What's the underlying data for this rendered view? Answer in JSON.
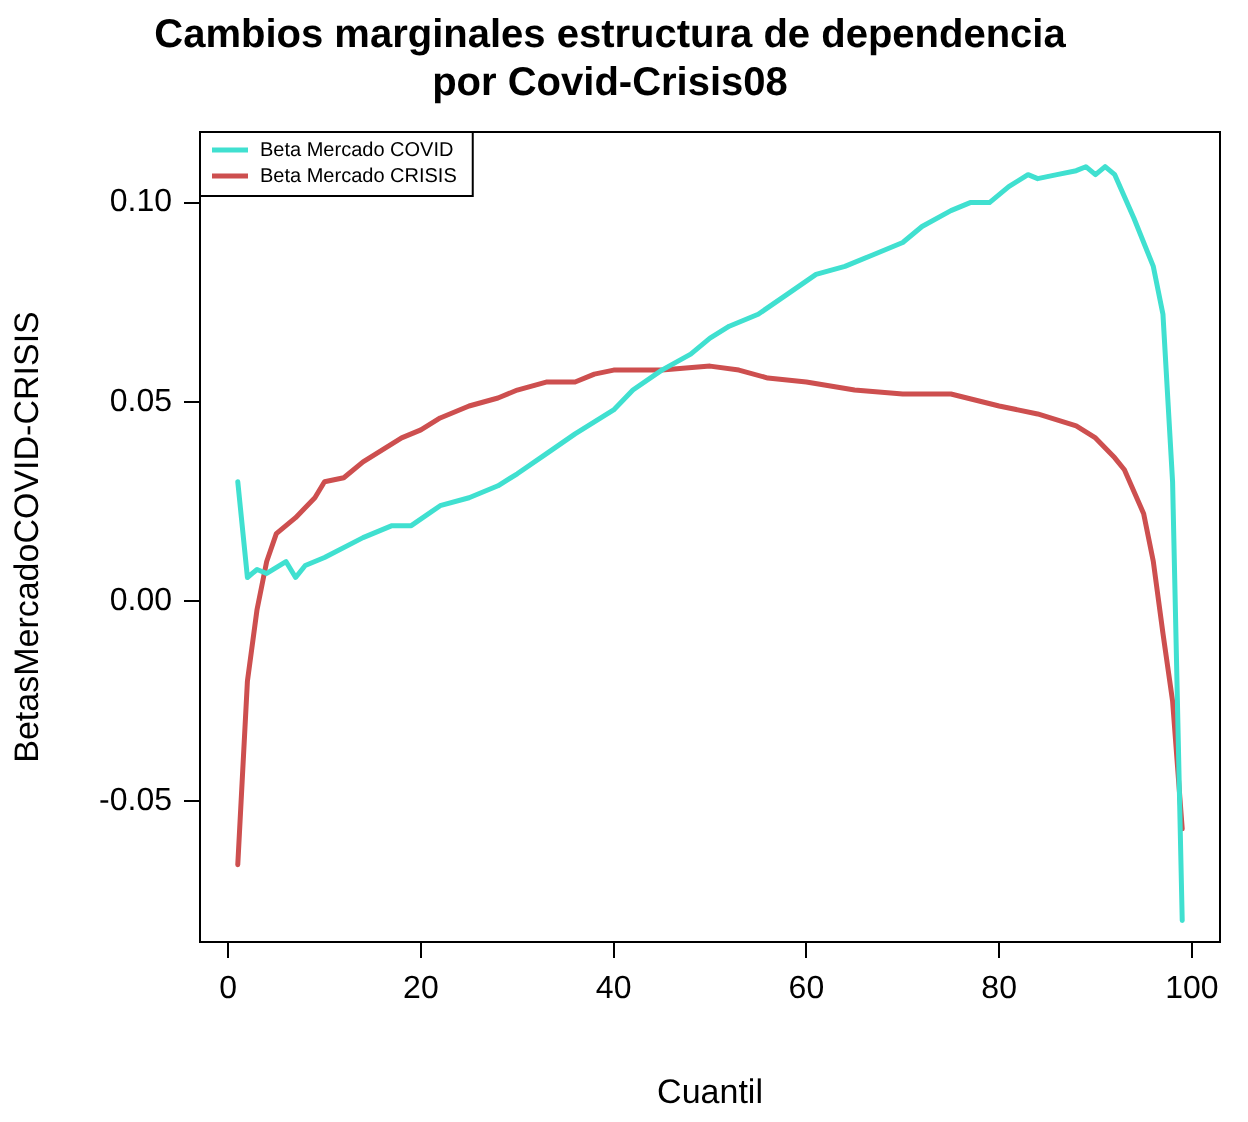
{
  "chart_data": {
    "type": "line",
    "title": "Cambios marginales estructura de dependencia por Covid-Crisis08",
    "xlabel": "Cuantil",
    "ylabel": "BetasMercadoCOVID-CRISIS",
    "xlim": [
      -2.92,
      102.92
    ],
    "xticks": [
      0,
      20,
      40,
      60,
      80,
      100
    ],
    "ylim": [
      -0.0854,
      0.1177
    ],
    "yticks": [
      {
        "value": -0.05,
        "label": "-0.05"
      },
      {
        "value": 0,
        "label": "0.00"
      },
      {
        "value": 0.05,
        "label": "0.05"
      },
      {
        "value": 0.1,
        "label": "0.10"
      }
    ],
    "legend": "top left",
    "grid": false,
    "marker": "none",
    "line_style": "solid",
    "series": [
      {
        "name": "Beta Mercado COVID",
        "color": "#40e0d0",
        "x": [
          1,
          2,
          3,
          4,
          6,
          7,
          8,
          10,
          14,
          17,
          19,
          22,
          25,
          28,
          30,
          33,
          36,
          38,
          40,
          42,
          45,
          48,
          50,
          52,
          55,
          58,
          61,
          64,
          67,
          70,
          72,
          75,
          77,
          79,
          81,
          83,
          84,
          86,
          88,
          89,
          90,
          91,
          92,
          94,
          96,
          97,
          98,
          99
        ],
        "values": [
          0.03,
          0.006,
          0.008,
          0.007,
          0.01,
          0.006,
          0.009,
          0.011,
          0.016,
          0.019,
          0.019,
          0.024,
          0.026,
          0.029,
          0.032,
          0.037,
          0.042,
          0.045,
          0.048,
          0.053,
          0.058,
          0.062,
          0.066,
          0.069,
          0.072,
          0.077,
          0.082,
          0.084,
          0.087,
          0.09,
          0.094,
          0.098,
          0.1,
          0.1,
          0.104,
          0.107,
          0.106,
          0.107,
          0.108,
          0.109,
          0.107,
          0.109,
          0.107,
          0.096,
          0.084,
          0.072,
          0.03,
          -0.08
        ]
      },
      {
        "name": "Beta Mercado CRISIS",
        "color": "#cd4f4f",
        "x": [
          1,
          2,
          3,
          4,
          5,
          7,
          9,
          10,
          12,
          14,
          16,
          18,
          20,
          22,
          25,
          28,
          30,
          33,
          36,
          38,
          40,
          45,
          50,
          53,
          56,
          60,
          65,
          70,
          75,
          80,
          84,
          88,
          90,
          92,
          93,
          95,
          96,
          97,
          98,
          99
        ],
        "values": [
          -0.066,
          -0.02,
          -0.002,
          0.01,
          0.017,
          0.021,
          0.026,
          0.03,
          0.031,
          0.035,
          0.038,
          0.041,
          0.043,
          0.046,
          0.049,
          0.051,
          0.053,
          0.055,
          0.055,
          0.057,
          0.058,
          0.058,
          0.059,
          0.058,
          0.056,
          0.055,
          0.053,
          0.052,
          0.052,
          0.049,
          0.047,
          0.044,
          0.041,
          0.036,
          0.033,
          0.022,
          0.01,
          -0.008,
          -0.025,
          -0.057
        ]
      }
    ]
  }
}
